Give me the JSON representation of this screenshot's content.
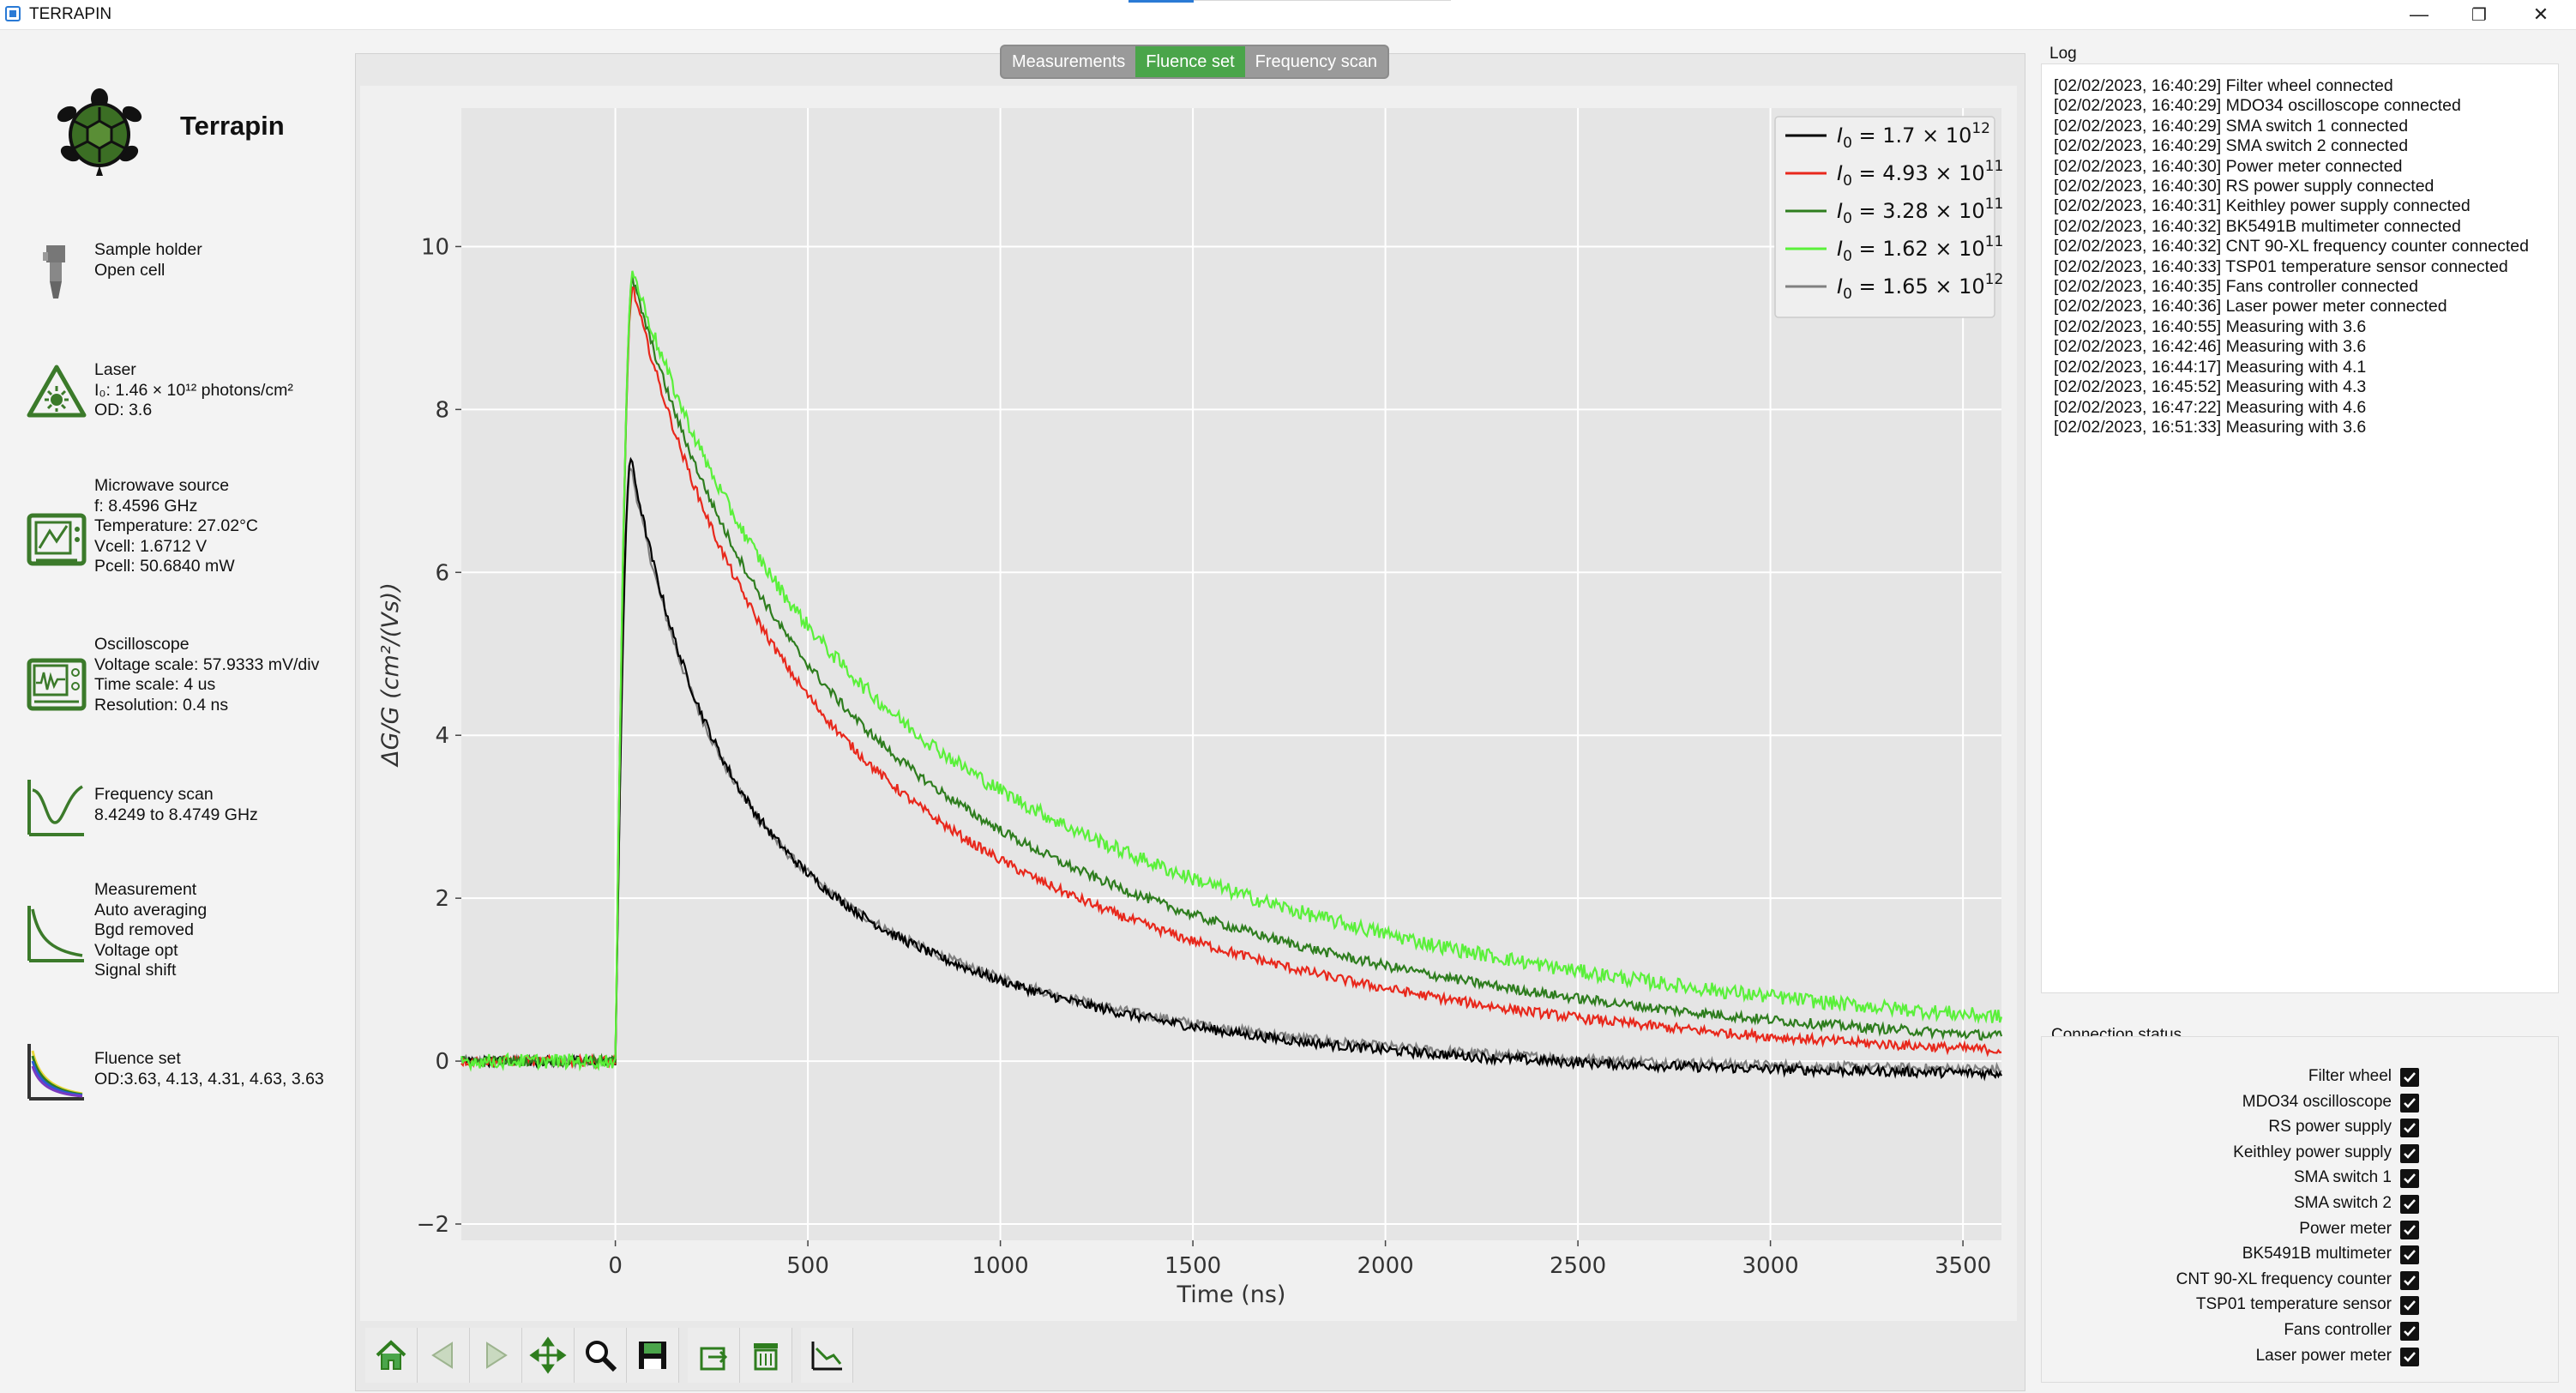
{
  "window": {
    "title": "TERRAPIN",
    "minimize": "—",
    "restore": "❐",
    "close": "✕"
  },
  "brand": {
    "name": "Terrapin"
  },
  "sidebar": [
    {
      "icon": "sample-holder-icon",
      "lines": [
        "Sample holder",
        "Open cell"
      ]
    },
    {
      "icon": "laser-icon",
      "lines": [
        "Laser",
        "I₀: 1.46 × 10¹² photons/cm²",
        "OD: 3.6"
      ]
    },
    {
      "icon": "microwave-source-icon",
      "lines": [
        "Microwave source",
        "f: 8.4596 GHz",
        "Temperature: 27.02°C",
        "Vcell: 1.6712 V",
        "Pcell: 50.6840 mW"
      ]
    },
    {
      "icon": "oscilloscope-icon",
      "lines": [
        "Oscilloscope",
        "Voltage scale: 57.9333 mV/div",
        "Time scale: 4 us",
        "Resolution: 0.4 ns"
      ]
    },
    {
      "icon": "frequency-scan-icon",
      "lines": [
        "Frequency scan",
        "8.4249 to 8.4749 GHz"
      ]
    },
    {
      "icon": "measurement-icon",
      "lines": [
        "Measurement",
        "Auto averaging",
        "Bgd removed",
        "Voltage opt",
        "Signal shift"
      ]
    },
    {
      "icon": "fluence-set-icon",
      "lines": [
        "Fluence set",
        "OD:3.63, 4.13, 4.31, 4.63, 3.63"
      ]
    }
  ],
  "tabs": [
    {
      "label": "Measurements",
      "active": false
    },
    {
      "label": "Fluence set",
      "active": true
    },
    {
      "label": "Frequency scan",
      "active": false
    }
  ],
  "chart_data": {
    "type": "line",
    "title": "",
    "xlabel": "Time (ns)",
    "ylabel": "ΔG/G (cm²/(Vs))",
    "xlim": [
      -400,
      3600
    ],
    "ylim": [
      -2.2,
      11.7
    ],
    "xticks": [
      0,
      500,
      1000,
      1500,
      2000,
      2500,
      3000,
      3500
    ],
    "xtick_labels": [
      "0",
      "500",
      "1000",
      "1500",
      "2000",
      "2500",
      "3000",
      "3500"
    ],
    "yticks": [
      -2,
      0,
      2,
      4,
      6,
      8,
      10
    ],
    "ytick_labels": [
      "−2",
      "0",
      "2",
      "4",
      "6",
      "8",
      "10"
    ],
    "grid": true,
    "legend_position": "top-right",
    "series": [
      {
        "name": "I₀ = 1.7 × 10¹²",
        "legend_main": "= 1.7 × 10",
        "legend_exp": "12",
        "color": "#000000",
        "peak": 7.4,
        "peak_t": 40,
        "decay": [
          {
            "a": 0.48,
            "tau": 180
          },
          {
            "a": 0.52,
            "tau": 750
          }
        ],
        "offset": -0.2
      },
      {
        "name": "I₀ = 4.93 × 10¹¹",
        "legend_main": "= 4.93 × 10",
        "legend_exp": "11",
        "color": "#e8281c",
        "peak": 9.5,
        "peak_t": 45,
        "decay": [
          {
            "a": 0.4,
            "tau": 280
          },
          {
            "a": 0.6,
            "tau": 1100
          }
        ],
        "offset": -0.1
      },
      {
        "name": "I₀ = 3.28 × 10¹¹",
        "legend_main": "= 3.28 × 10",
        "legend_exp": "11",
        "color": "#2e7d1e",
        "peak": 9.6,
        "peak_t": 45,
        "decay": [
          {
            "a": 0.38,
            "tau": 300
          },
          {
            "a": 0.62,
            "tau": 1200
          }
        ],
        "offset": 0.0
      },
      {
        "name": "I₀ = 1.62 × 10¹¹",
        "legend_main": "= 1.62 × 10",
        "legend_exp": "11",
        "color": "#5af03a",
        "peak": 9.7,
        "peak_t": 45,
        "decay": [
          {
            "a": 0.35,
            "tau": 320
          },
          {
            "a": 0.65,
            "tau": 1350
          }
        ],
        "offset": 0.1
      },
      {
        "name": "I₀ = 1.65 × 10¹²",
        "legend_main": "= 1.65 × 10",
        "legend_exp": "12",
        "color": "#808080",
        "peak": 7.3,
        "peak_t": 40,
        "decay": [
          {
            "a": 0.48,
            "tau": 180
          },
          {
            "a": 0.52,
            "tau": 760
          }
        ],
        "offset": -0.15
      }
    ]
  },
  "toolbar": [
    "home-icon",
    "back-icon",
    "forward-icon",
    "pan-icon",
    "zoom-icon",
    "save-icon",
    "export-icon",
    "clear-icon",
    "plot-options-icon"
  ],
  "log": {
    "title": "Log",
    "lines": [
      "[02/02/2023, 16:40:29] Filter wheel connected",
      "[02/02/2023, 16:40:29] MDO34 oscilloscope connected",
      "[02/02/2023, 16:40:29] SMA switch 1 connected",
      "[02/02/2023, 16:40:29] SMA switch 2 connected",
      "[02/02/2023, 16:40:30] Power meter connected",
      "[02/02/2023, 16:40:30] RS power supply connected",
      "[02/02/2023, 16:40:31] Keithley power supply connected",
      "[02/02/2023, 16:40:32] BK5491B multimeter connected",
      "[02/02/2023, 16:40:32] CNT 90-XL frequency counter connected",
      "[02/02/2023, 16:40:33] TSP01 temperature sensor connected",
      "[02/02/2023, 16:40:35] Fans controller connected",
      "[02/02/2023, 16:40:36] Laser power meter connected",
      "[02/02/2023, 16:40:55] Measuring with 3.6",
      "[02/02/2023, 16:42:46] Measuring with 3.6",
      "[02/02/2023, 16:44:17] Measuring with 4.1",
      "[02/02/2023, 16:45:52] Measuring with 4.3",
      "[02/02/2023, 16:47:22] Measuring with 4.6",
      "[02/02/2023, 16:51:33] Measuring with 3.6"
    ]
  },
  "connection": {
    "title": "Connection status",
    "items": [
      {
        "label": "Filter wheel",
        "checked": true
      },
      {
        "label": "MDO34 oscilloscope",
        "checked": true
      },
      {
        "label": "RS power supply",
        "checked": true
      },
      {
        "label": "Keithley power supply",
        "checked": true
      },
      {
        "label": "SMA switch 1",
        "checked": true
      },
      {
        "label": "SMA switch 2",
        "checked": true
      },
      {
        "label": "Power meter",
        "checked": true
      },
      {
        "label": "BK5491B multimeter",
        "checked": true
      },
      {
        "label": "CNT 90-XL frequency counter",
        "checked": true
      },
      {
        "label": "TSP01 temperature sensor",
        "checked": true
      },
      {
        "label": "Fans controller",
        "checked": true
      },
      {
        "label": "Laser power meter",
        "checked": true
      }
    ]
  },
  "colors": {
    "accent": "#4aa54a",
    "icon_green": "#3b7a2a",
    "plot_bg": "#e5e5e5"
  }
}
